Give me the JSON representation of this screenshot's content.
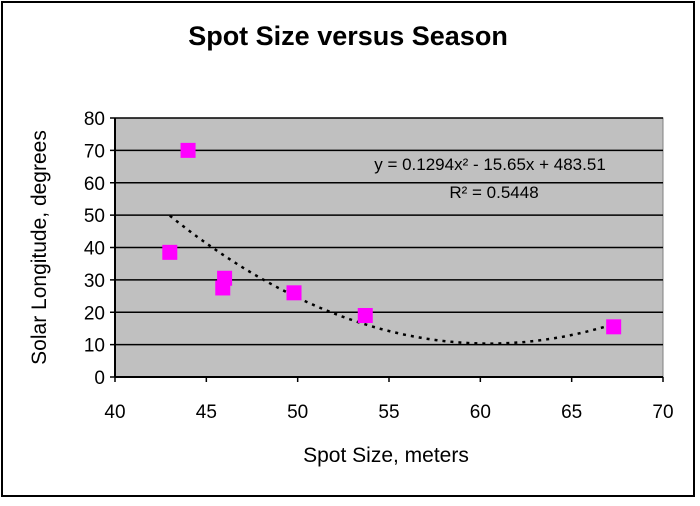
{
  "chart_data": {
    "type": "scatter",
    "title": "Spot Size versus Season",
    "xlabel": "Spot Size, meters",
    "ylabel": "Solar Longitude, degrees",
    "xlim": [
      40,
      70
    ],
    "ylim": [
      0,
      80
    ],
    "xticks": [
      "40",
      "45",
      "50",
      "55",
      "60",
      "65",
      "70"
    ],
    "yticks": [
      "0",
      "10",
      "20",
      "30",
      "40",
      "50",
      "60",
      "70",
      "80"
    ],
    "grid": true,
    "colors": {
      "plot_bg": "#c0c0c0",
      "marker": "#ff00ff",
      "trend": "#000000"
    },
    "points": [
      {
        "x": 43.0,
        "y": 38.5
      },
      {
        "x": 44.0,
        "y": 70.0
      },
      {
        "x": 45.9,
        "y": 27.5
      },
      {
        "x": 46.0,
        "y": 30.5
      },
      {
        "x": 49.8,
        "y": 26.0
      },
      {
        "x": 53.7,
        "y": 19.0
      },
      {
        "x": 67.3,
        "y": 15.5
      }
    ],
    "trendline": {
      "type": "polynomial",
      "coefficients": [
        0.1294,
        -15.65,
        483.51
      ],
      "x_range": [
        43.0,
        67.3
      ],
      "equation": "y = 0.1294x² - 15.65x + 483.51",
      "r_squared": "R² = 0.5448"
    }
  }
}
